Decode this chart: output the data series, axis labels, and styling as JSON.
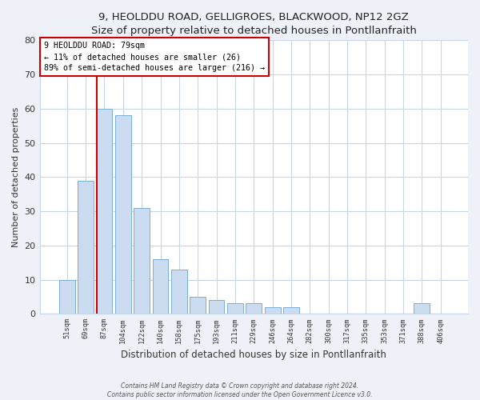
{
  "title": "9, HEOLDDU ROAD, GELLIGROES, BLACKWOOD, NP12 2GZ",
  "subtitle": "Size of property relative to detached houses in Pontllanfraith",
  "xlabel": "Distribution of detached houses by size in Pontllanfraith",
  "ylabel": "Number of detached properties",
  "bar_labels": [
    "51sqm",
    "69sqm",
    "87sqm",
    "104sqm",
    "122sqm",
    "140sqm",
    "158sqm",
    "175sqm",
    "193sqm",
    "211sqm",
    "229sqm",
    "246sqm",
    "264sqm",
    "282sqm",
    "300sqm",
    "317sqm",
    "335sqm",
    "353sqm",
    "371sqm",
    "388sqm",
    "406sqm"
  ],
  "bar_heights": [
    10,
    39,
    60,
    58,
    31,
    16,
    13,
    5,
    4,
    3,
    3,
    2,
    2,
    0,
    0,
    0,
    0,
    0,
    0,
    3,
    0
  ],
  "bar_color": "#ccdcf0",
  "bar_edge_color": "#7bafd4",
  "ylim": [
    0,
    80
  ],
  "yticks": [
    0,
    10,
    20,
    30,
    40,
    50,
    60,
    70,
    80
  ],
  "property_line_index": 2,
  "property_line_color": "#cc0000",
  "annotation_line1": "9 HEOLDDU ROAD: 79sqm",
  "annotation_line2": "← 11% of detached houses are smaller (26)",
  "annotation_line3": "89% of semi-detached houses are larger (216) →",
  "annotation_box_color": "#cc0000",
  "footer_line1": "Contains HM Land Registry data © Crown copyright and database right 2024.",
  "footer_line2": "Contains public sector information licensed under the Open Government Licence v3.0.",
  "bg_color": "#eef2f8",
  "plot_bg_color": "#ffffff",
  "grid_color": "#c8d4e8"
}
